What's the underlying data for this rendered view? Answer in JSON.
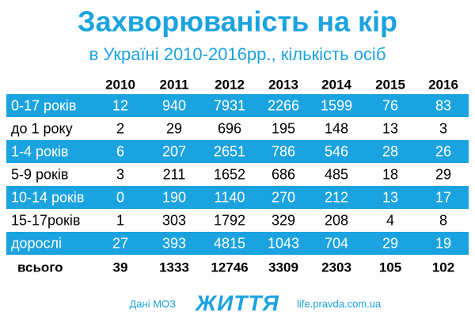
{
  "header": {
    "title": "Захворюваність на кір",
    "subtitle": "в Україні 2010-2016рр., кількість осіб"
  },
  "table": {
    "columns": [
      2010,
      2011,
      2012,
      2013,
      2014,
      2015,
      2016
    ],
    "rows": [
      [
        "0-17 років",
        12,
        940,
        7931,
        2266,
        1599,
        76,
        83
      ],
      [
        "до 1 року",
        2,
        29,
        696,
        195,
        148,
        13,
        3
      ],
      [
        "1-4 років",
        6,
        207,
        2651,
        786,
        546,
        28,
        26
      ],
      [
        "5-9 років",
        3,
        211,
        1652,
        686,
        485,
        18,
        29
      ],
      [
        "10-14 років",
        0,
        190,
        1140,
        270,
        212,
        13,
        17
      ],
      [
        "15-17років",
        1,
        303,
        1792,
        329,
        208,
        4,
        8
      ],
      [
        "дорослі",
        27,
        393,
        4815,
        1043,
        704,
        29,
        19
      ]
    ],
    "total": [
      "всього",
      39,
      1333,
      12746,
      3309,
      2303,
      105,
      102
    ]
  },
  "footer": {
    "source": "Дані МОЗ",
    "logo": "ЖИТТЯ",
    "url": "life.pravda.com.ua"
  }
}
